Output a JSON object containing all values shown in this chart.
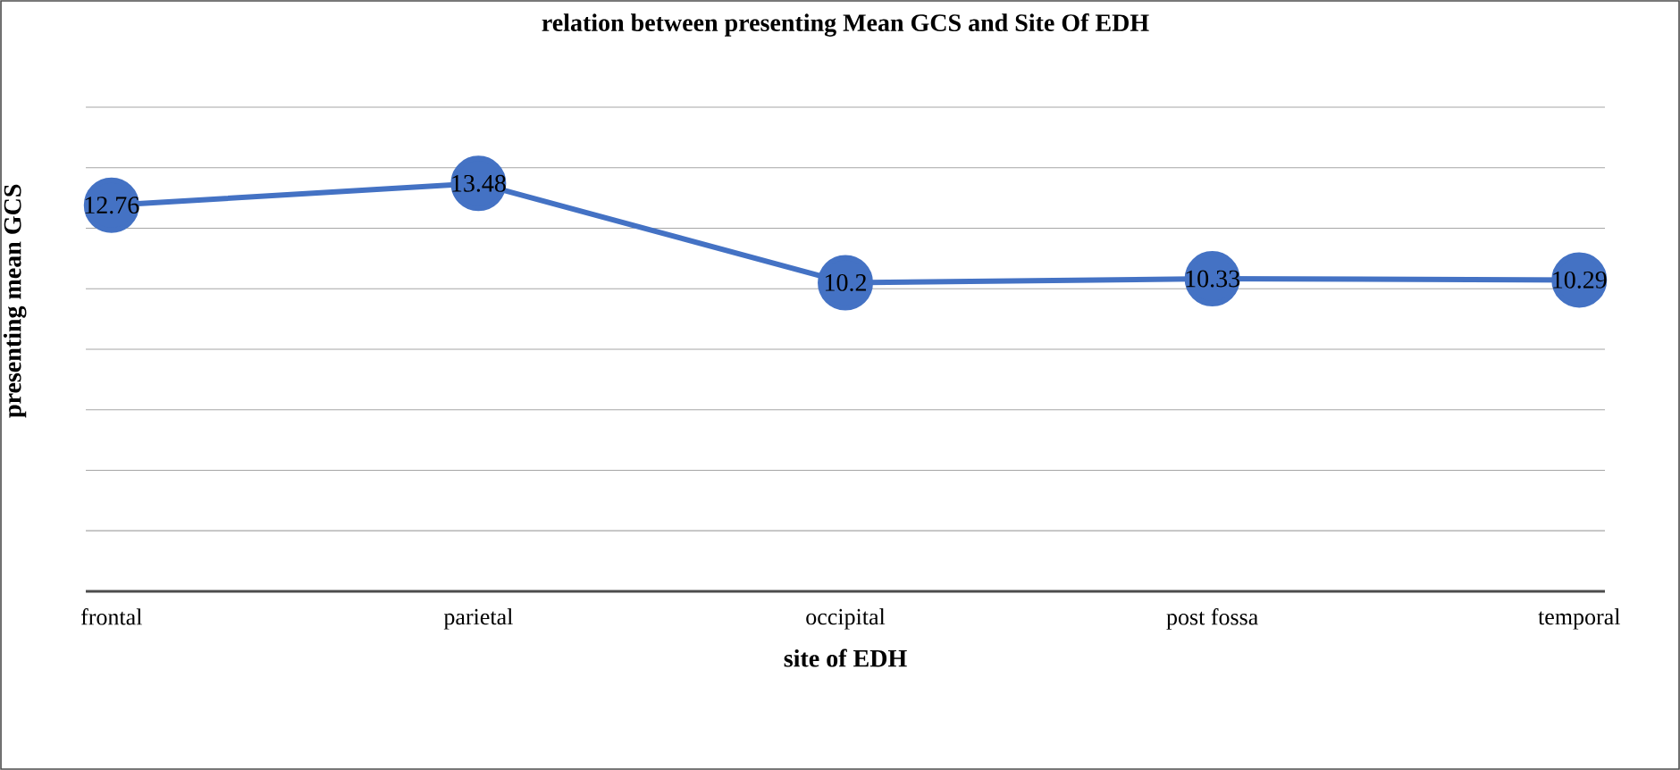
{
  "chart_data": {
    "type": "line",
    "title": "relation between presenting Mean GCS and Site Of EDH",
    "xlabel": "site of EDH",
    "ylabel": "presenting mean GCS",
    "categories": [
      "frontal",
      "parietal",
      "occipital",
      "post fossa",
      "temporal"
    ],
    "series": [
      {
        "color": "#4472c4",
        "values": [
          12.76,
          13.48,
          10.2,
          10.33,
          10.29
        ]
      }
    ],
    "ylim": [
      0,
      16
    ],
    "tick_labels": "x",
    "grid": "y",
    "marker": "circle",
    "line_style": "solid",
    "data_labels": true
  }
}
